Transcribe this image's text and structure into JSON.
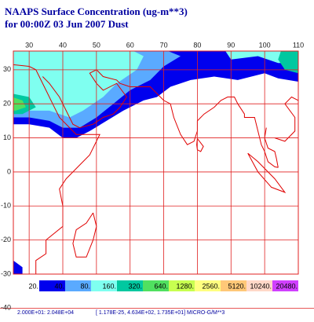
{
  "header": {
    "title_lines": [
      "NAAPS Surface Concentration (ug-m**3)",
      "for 00:00Z 03 Jun 2007    Dust"
    ]
  },
  "map": {
    "lon_labels": [
      30,
      40,
      50,
      60,
      70,
      80,
      90,
      100,
      110
    ],
    "lat_labels": [
      30,
      20,
      10,
      0,
      -10,
      -20,
      -30,
      -40
    ],
    "xlim": [
      25.3,
      110
    ],
    "ylim": [
      -30,
      35.5
    ]
  },
  "legend": {
    "labels": [
      "20.",
      "40.",
      "80.",
      "160.",
      "320.",
      "640.",
      "1280.",
      "2560.",
      "5120.",
      "10240.",
      "20480."
    ],
    "colors": [
      "#ffffff",
      "#0000ee",
      "#5aaaff",
      "#7ffff0",
      "#00c8a0",
      "#50e060",
      "#c8ff50",
      "#ffff80",
      "#ffc878",
      "#ffd8c8",
      "#d040ff"
    ]
  },
  "footer": {
    "range": "2.000E+01: 2.048E+04",
    "stats": "[ 1.178E-25, 4.634E+02, 1.735E+01] MICRO-G/M**3"
  }
}
